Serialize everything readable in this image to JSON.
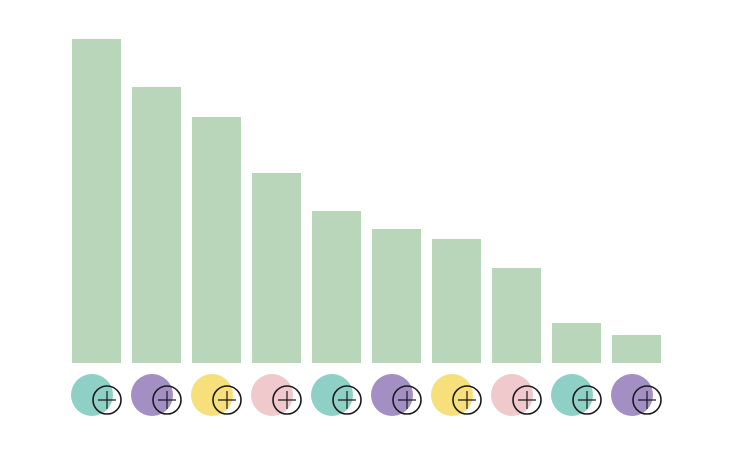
{
  "chart_data": {
    "type": "bar",
    "categories": [
      null,
      null,
      null,
      null,
      null,
      null,
      null,
      null,
      null,
      null
    ],
    "values": [
      324,
      276,
      246,
      190,
      152,
      134,
      124,
      95,
      40,
      28
    ],
    "color": "#b9d5ba",
    "ylim": [
      0,
      324
    ]
  }
}
